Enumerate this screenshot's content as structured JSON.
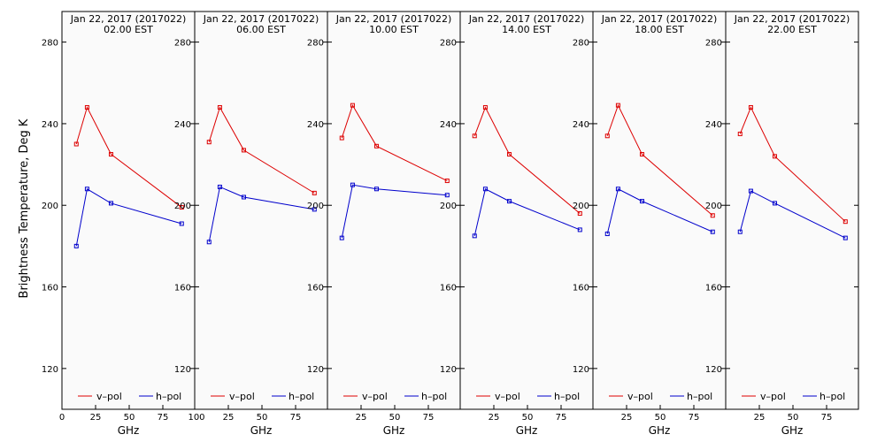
{
  "chart_data": {
    "type": "line",
    "ylabel": "Brightness Temperature, Deg K",
    "xlabel": "GHz",
    "xlim": [
      0,
      100
    ],
    "ylim": [
      100,
      295
    ],
    "yticks": [
      120,
      160,
      200,
      240,
      280
    ],
    "xticks_first": [
      "0",
      "25",
      "50",
      "75",
      "100"
    ],
    "xticks_other": [
      "25",
      "50",
      "75"
    ],
    "legend": {
      "vpol": "v–pol",
      "hpol": "h–pol"
    },
    "colors": {
      "vpol": "#dd0000",
      "hpol": "#0000cc",
      "background": "#fafafa"
    },
    "panels": [
      {
        "title_line1": "Jan 22, 2017 (2017022)",
        "title_line2": "02.00 EST",
        "series": [
          {
            "name": "v–pol",
            "x": [
              10.7,
              18.7,
              36.5,
              89.0
            ],
            "y": [
              230,
              248,
              225,
              199
            ]
          },
          {
            "name": "h–pol",
            "x": [
              10.7,
              18.7,
              36.5,
              89.0
            ],
            "y": [
              180,
              208,
              201,
              191
            ]
          }
        ]
      },
      {
        "title_line1": "Jan 22, 2017 (2017022)",
        "title_line2": "06.00 EST",
        "series": [
          {
            "name": "v–pol",
            "x": [
              10.7,
              18.7,
              36.5,
              89.0
            ],
            "y": [
              231,
              248,
              227,
              206
            ]
          },
          {
            "name": "h–pol",
            "x": [
              10.7,
              18.7,
              36.5,
              89.0
            ],
            "y": [
              182,
              209,
              204,
              198
            ]
          }
        ]
      },
      {
        "title_line1": "Jan 22, 2017 (2017022)",
        "title_line2": "10.00 EST",
        "series": [
          {
            "name": "v–pol",
            "x": [
              10.7,
              18.7,
              36.5,
              89.0
            ],
            "y": [
              233,
              249,
              229,
              212
            ]
          },
          {
            "name": "h–pol",
            "x": [
              10.7,
              18.7,
              36.5,
              89.0
            ],
            "y": [
              184,
              210,
              208,
              205
            ]
          }
        ]
      },
      {
        "title_line1": "Jan 22, 2017 (2017022)",
        "title_line2": "14.00 EST",
        "series": [
          {
            "name": "v–pol",
            "x": [
              10.7,
              18.7,
              36.5,
              89.0
            ],
            "y": [
              234,
              248,
              225,
              196
            ]
          },
          {
            "name": "h–pol",
            "x": [
              10.7,
              18.7,
              36.5,
              89.0
            ],
            "y": [
              185,
              208,
              202,
              188
            ]
          }
        ]
      },
      {
        "title_line1": "Jan 22, 2017 (2017022)",
        "title_line2": "18.00 EST",
        "series": [
          {
            "name": "v–pol",
            "x": [
              10.7,
              18.7,
              36.5,
              89.0
            ],
            "y": [
              234,
              249,
              225,
              195
            ]
          },
          {
            "name": "h–pol",
            "x": [
              10.7,
              18.7,
              36.5,
              89.0
            ],
            "y": [
              186,
              208,
              202,
              187
            ]
          }
        ]
      },
      {
        "title_line1": "Jan 22, 2017 (2017022)",
        "title_line2": "22.00 EST",
        "series": [
          {
            "name": "v–pol",
            "x": [
              10.7,
              18.7,
              36.5,
              89.0
            ],
            "y": [
              235,
              248,
              224,
              192
            ]
          },
          {
            "name": "h–pol",
            "x": [
              10.7,
              18.7,
              36.5,
              89.0
            ],
            "y": [
              187,
              207,
              201,
              184
            ]
          }
        ]
      }
    ]
  }
}
